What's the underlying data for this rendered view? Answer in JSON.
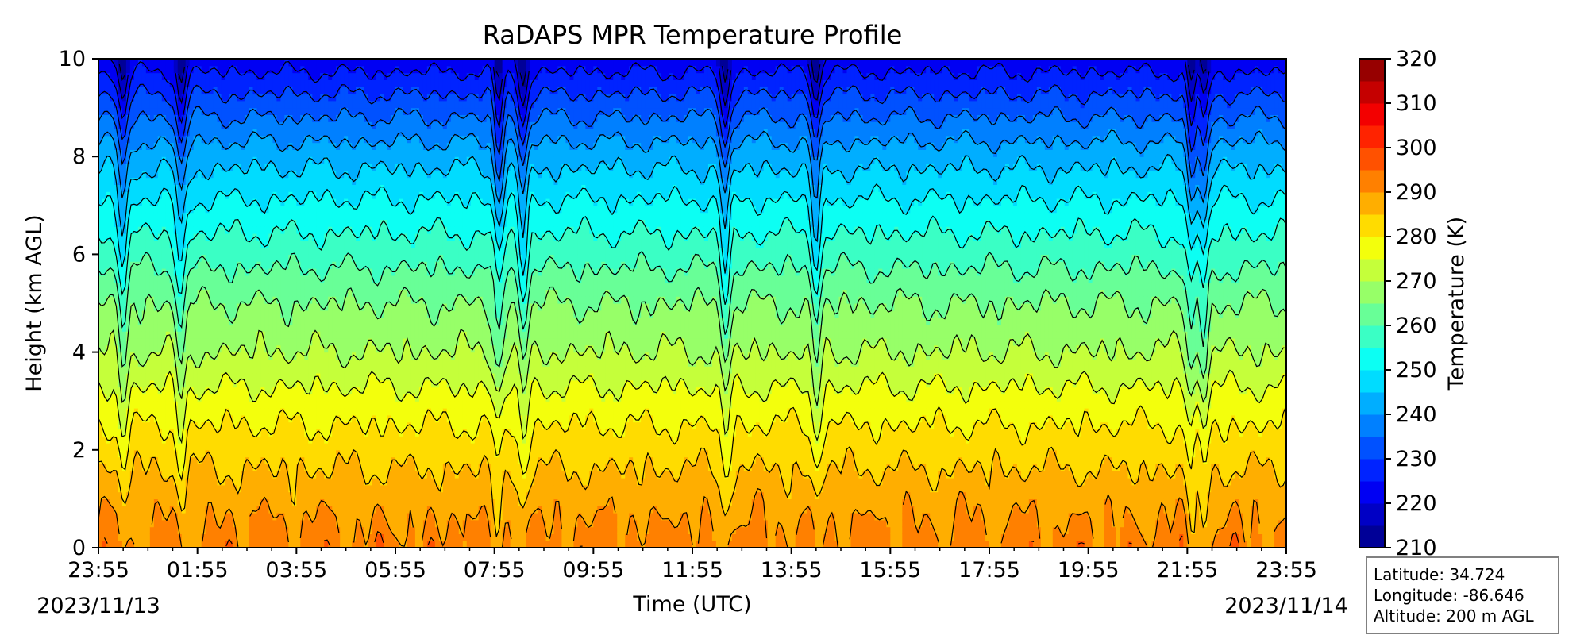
{
  "chart_data": {
    "type": "heatmap",
    "title": "RaDAPS MPR Temperature Profile",
    "xlabel": "Time (UTC)",
    "ylabel": "Height (km AGL)",
    "x_tick_labels": [
      "23:55",
      "01:55",
      "03:55",
      "05:55",
      "07:55",
      "09:55",
      "11:55",
      "13:55",
      "15:55",
      "17:55",
      "19:55",
      "21:55",
      "23:55"
    ],
    "start_date": "2023/11/13",
    "end_date": "2023/11/14",
    "y_ticks": [
      0,
      2,
      4,
      6,
      8,
      10
    ],
    "ylim": [
      0,
      10
    ],
    "colorbar": {
      "label": "Temperature (K)",
      "ticks": [
        210,
        220,
        230,
        240,
        250,
        260,
        270,
        280,
        290,
        300,
        310,
        320
      ],
      "range": [
        210,
        320
      ],
      "step": 5,
      "colormap": "jet"
    },
    "profile": {
      "description_levels_km": [
        0,
        1,
        2,
        3,
        4,
        5,
        6,
        7,
        8,
        9,
        10
      ],
      "typical_temperature_K": [
        292,
        288,
        283,
        277,
        270,
        265,
        258,
        251,
        243,
        233,
        222
      ]
    },
    "contour_interval_K": 5,
    "events_utc": [
      "00:25",
      "01:35",
      "08:00",
      "08:30",
      "12:35",
      "14:25",
      "22:00",
      "22:15"
    ]
  },
  "info": {
    "latitude": "Latitude: 34.724",
    "longitude": "Longitude: -86.646",
    "altitude": "Altitude: 200 m AGL"
  }
}
